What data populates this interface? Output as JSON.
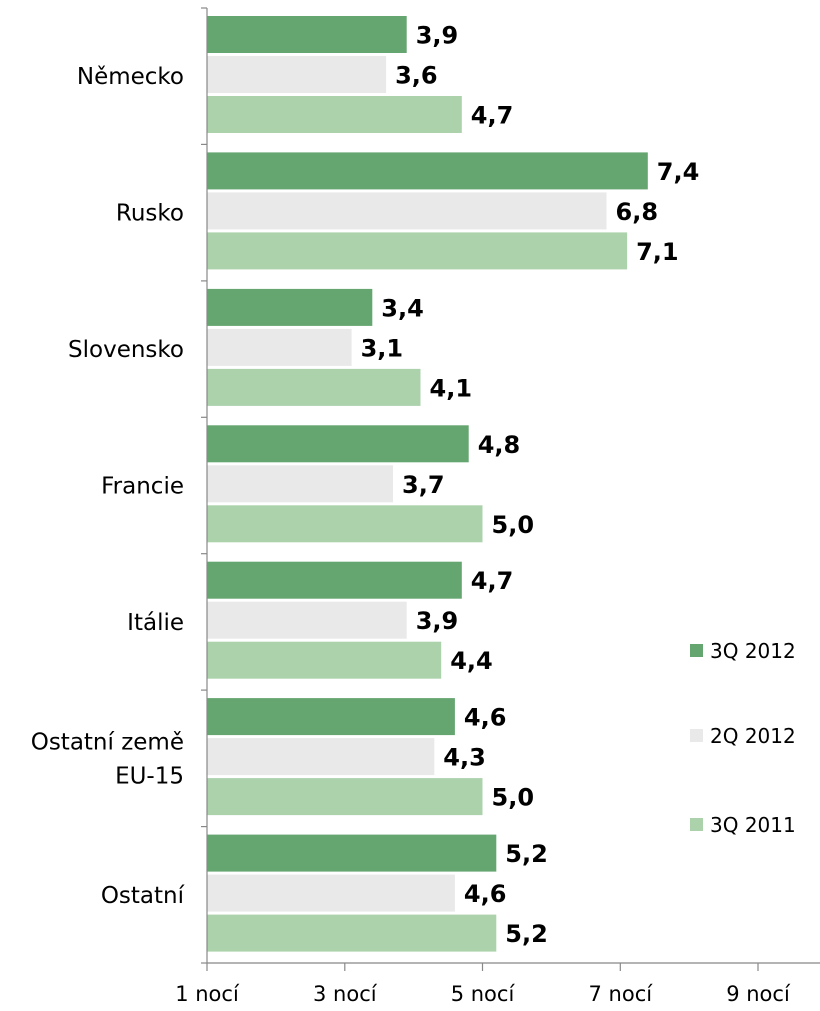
{
  "chart_data": {
    "type": "bar",
    "orientation": "horizontal",
    "categories": [
      "Německo",
      "Rusko",
      "Slovensko",
      "Francie",
      "Itálie",
      [
        "Ostatní země",
        "EU-15"
      ],
      "Ostatní"
    ],
    "series": [
      {
        "name": "3Q 2012",
        "color": "#65a570",
        "values": [
          3.9,
          7.4,
          3.4,
          4.8,
          4.7,
          4.6,
          5.2
        ],
        "labels": [
          "3,9",
          "7,4",
          "3,4",
          "4,8",
          "4,7",
          "4,6",
          "5,2"
        ]
      },
      {
        "name": "2Q 2012",
        "color": "#e9e9e9",
        "values": [
          3.6,
          6.8,
          3.1,
          3.7,
          3.9,
          4.3,
          4.6
        ],
        "labels": [
          "3,6",
          "6,8",
          "3,1",
          "3,7",
          "3,9",
          "4,3",
          "4,6"
        ]
      },
      {
        "name": "3Q 2011",
        "color": "#acd2ac",
        "values": [
          4.7,
          7.1,
          4.1,
          5.0,
          4.4,
          5.0,
          5.2
        ],
        "labels": [
          "4,7",
          "7,1",
          "4,1",
          "5,0",
          "4,4",
          "5,0",
          "5,2"
        ]
      }
    ],
    "x_ticks": [
      1,
      3,
      5,
      7,
      9
    ],
    "x_tick_labels": [
      "1 nocí",
      "3 nocí",
      "5 nocí",
      "7 nocí",
      "9 nocí"
    ],
    "xlim": [
      1,
      9
    ],
    "grid": false,
    "legend_position": "right"
  }
}
